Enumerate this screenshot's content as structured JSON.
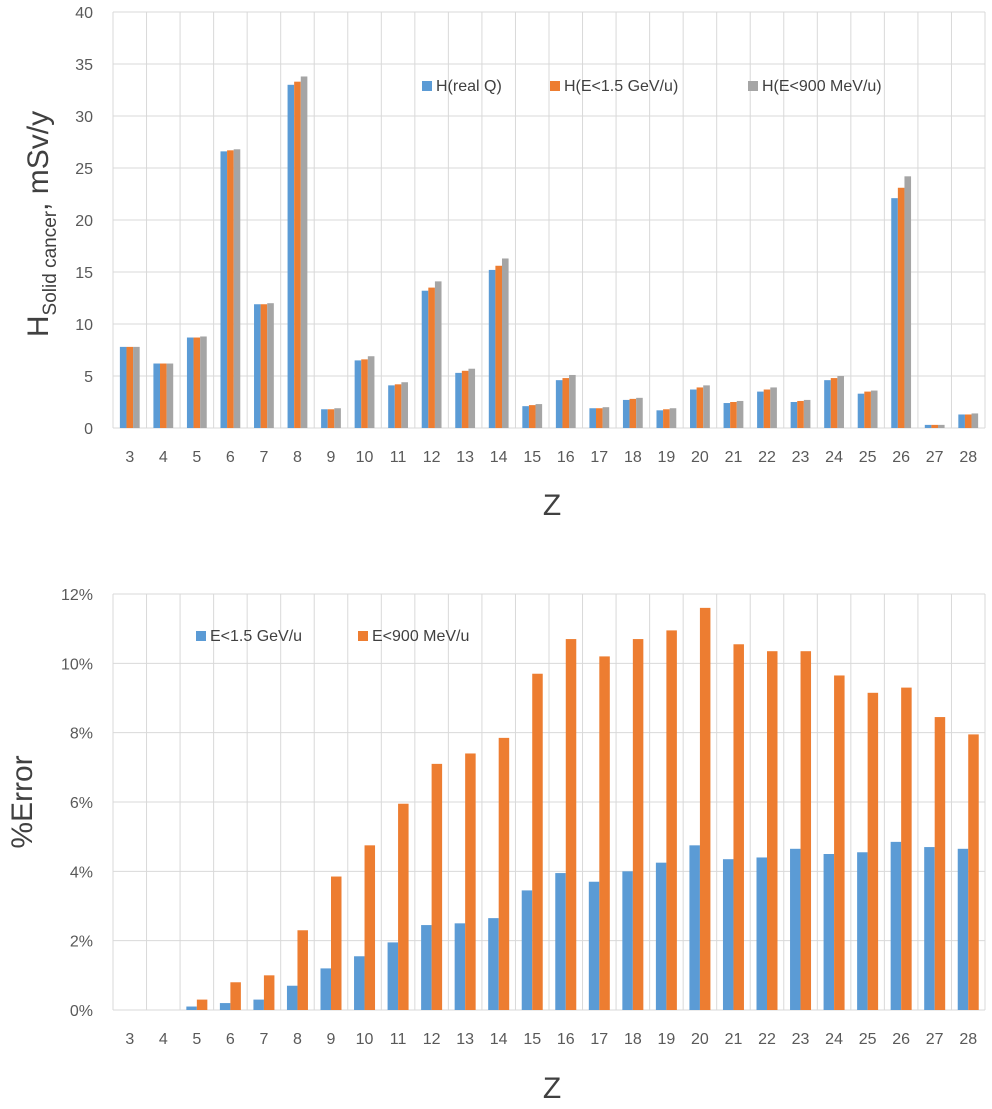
{
  "chart_data": [
    {
      "type": "bar",
      "title": "",
      "categories": [
        "3",
        "4",
        "5",
        "6",
        "7",
        "8",
        "9",
        "10",
        "11",
        "12",
        "13",
        "14",
        "15",
        "16",
        "17",
        "18",
        "19",
        "20",
        "21",
        "22",
        "23",
        "24",
        "25",
        "26",
        "27",
        "28"
      ],
      "series": [
        {
          "name": "H(real Q)",
          "color": "#5B9BD5",
          "values": [
            7.8,
            6.2,
            8.7,
            26.6,
            11.9,
            33.0,
            1.8,
            6.5,
            4.1,
            13.2,
            5.3,
            15.2,
            2.1,
            4.6,
            1.9,
            2.7,
            1.7,
            3.7,
            2.4,
            3.5,
            2.5,
            4.6,
            3.3,
            22.1,
            0.3,
            1.3
          ]
        },
        {
          "name": "H(E<1.5 GeV/u)",
          "color": "#ED7D31",
          "values": [
            7.8,
            6.2,
            8.7,
            26.7,
            11.9,
            33.3,
            1.8,
            6.6,
            4.2,
            13.5,
            5.5,
            15.6,
            2.2,
            4.8,
            1.9,
            2.8,
            1.8,
            3.9,
            2.5,
            3.7,
            2.6,
            4.8,
            3.5,
            23.1,
            0.3,
            1.3
          ]
        },
        {
          "name": "H(E<900 MeV/u)",
          "color": "#A5A5A5",
          "values": [
            7.8,
            6.2,
            8.8,
            26.8,
            12.0,
            33.8,
            1.9,
            6.9,
            4.4,
            14.1,
            5.7,
            16.3,
            2.3,
            5.1,
            2.0,
            2.9,
            1.9,
            4.1,
            2.6,
            3.9,
            2.7,
            5.0,
            3.6,
            24.2,
            0.3,
            1.4
          ]
        }
      ],
      "xlabel": "Z",
      "ylabel_main": "H",
      "ylabel_sub": "Solid cancer",
      "ylabel_suffix": ", mSv/y",
      "ylim": [
        0,
        40
      ],
      "yticks": [
        "0",
        "5",
        "10",
        "15",
        "20",
        "25",
        "30",
        "35",
        "40"
      ],
      "grid": true,
      "legend_position": "top-right"
    },
    {
      "type": "bar",
      "title": "",
      "categories": [
        "3",
        "4",
        "5",
        "6",
        "7",
        "8",
        "9",
        "10",
        "11",
        "12",
        "13",
        "14",
        "15",
        "16",
        "17",
        "18",
        "19",
        "20",
        "21",
        "22",
        "23",
        "24",
        "25",
        "26",
        "27",
        "28"
      ],
      "series": [
        {
          "name": "E<1.5 GeV/u",
          "color": "#5B9BD5",
          "values": [
            0.0,
            0.0,
            0.1,
            0.2,
            0.3,
            0.7,
            1.2,
            1.55,
            1.95,
            2.45,
            2.5,
            2.65,
            3.45,
            3.95,
            3.7,
            4.0,
            4.25,
            4.75,
            4.35,
            4.4,
            4.65,
            4.5,
            4.55,
            4.85,
            4.7,
            4.65
          ]
        },
        {
          "name": "E<900 MeV/u",
          "color": "#ED7D31",
          "values": [
            0.0,
            0.0,
            0.3,
            0.8,
            1.0,
            2.3,
            3.85,
            4.75,
            5.95,
            7.1,
            7.4,
            7.85,
            9.7,
            10.7,
            10.2,
            10.7,
            10.95,
            11.6,
            10.55,
            10.35,
            10.35,
            9.65,
            9.15,
            9.3,
            8.45,
            7.95
          ]
        }
      ],
      "xlabel": "Z",
      "ylabel": "%Error",
      "ylim": [
        0,
        12
      ],
      "yticks": [
        "0%",
        "2%",
        "4%",
        "6%",
        "8%",
        "10%",
        "12%"
      ],
      "grid": true,
      "legend_position": "top-left"
    }
  ]
}
